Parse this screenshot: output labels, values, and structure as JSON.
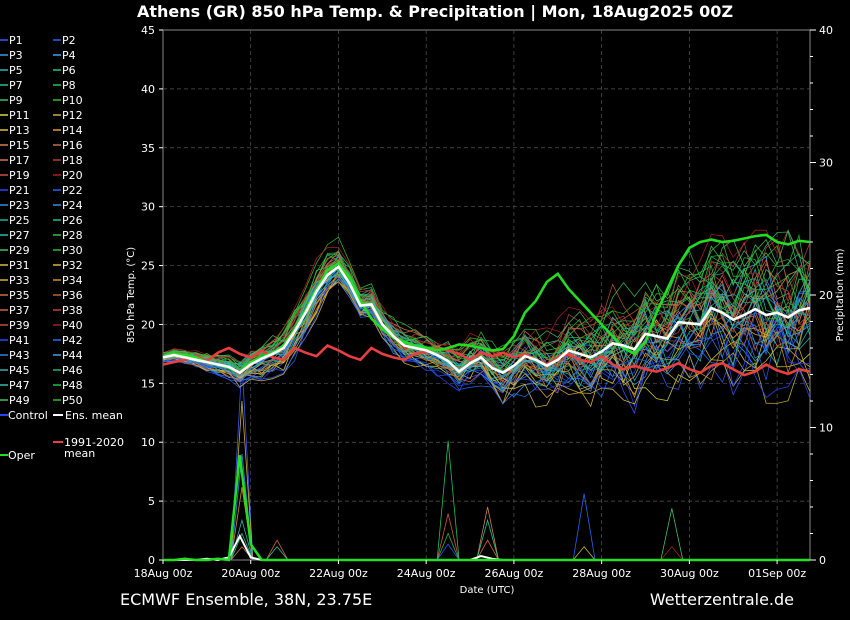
{
  "header": {
    "title": "Athens  (GR)  850 hPa Temp. & Precipitation | Mon, 18Aug2025 00Z"
  },
  "footer": {
    "left": "ECMWF Ensemble, 38N, 23.75E",
    "right": "Wetterzentrale.de"
  },
  "colors": {
    "background": "#000000",
    "text": "#ffffff",
    "grid": "#555555",
    "oper": "#22dd22",
    "climate": "#e84040",
    "mean": "#ffffff",
    "control": "#2244ff"
  },
  "legend": {
    "members": [
      "P1",
      "P2",
      "P3",
      "P4",
      "P5",
      "P6",
      "P7",
      "P8",
      "P9",
      "P10",
      "P11",
      "P12",
      "P13",
      "P14",
      "P15",
      "P16",
      "P17",
      "P18",
      "P19",
      "P20",
      "P21",
      "P22",
      "P23",
      "P24",
      "P25",
      "P26",
      "P27",
      "P28",
      "P29",
      "P30",
      "P31",
      "P32",
      "P33",
      "P34",
      "P35",
      "P36",
      "P37",
      "P38",
      "P39",
      "P40",
      "P41",
      "P42",
      "P43",
      "P44",
      "P45",
      "P46",
      "P47",
      "P48",
      "P49",
      "P50"
    ],
    "member_colors": [
      "#3b57ff",
      "#2b5cf0",
      "#2a9df0",
      "#3aa0ff",
      "#28b4b4",
      "#22c488",
      "#20c0a0",
      "#22c050",
      "#30c060",
      "#30c030",
      "#d8d840",
      "#c8b040",
      "#e0c030",
      "#d8a030",
      "#d08050",
      "#c07040",
      "#d07050",
      "#b04040",
      "#d05040",
      "#b02020",
      "#2844ff",
      "#2860f0",
      "#2890e0",
      "#3090e0",
      "#20b0a0",
      "#20c090",
      "#20c0b0",
      "#30c040",
      "#40c060",
      "#30b830",
      "#d8c040",
      "#e0b040",
      "#d0b030",
      "#d09020",
      "#c87040",
      "#c06030",
      "#d06040",
      "#c04040",
      "#c05030",
      "#a02020",
      "#2848ff",
      "#2070f0",
      "#3080e0",
      "#40a0e0",
      "#30b0b0",
      "#20b080",
      "#30c0a0",
      "#20c040",
      "#40c050",
      "#30c030"
    ],
    "control_label": "Control",
    "mean_label": "Ens. mean",
    "climate_label_line1": "1991-2020",
    "climate_label_line2": "mean",
    "oper_label": "Oper"
  },
  "chart_data": {
    "type": "line",
    "y_left_label": "850 hPa Temp. (°C)",
    "y_right_label": "Precipitation (mm)",
    "x_label": "Date (UTC)",
    "x_ticks": [
      "18Aug 00z",
      "20Aug 00z",
      "22Aug 00z",
      "24Aug 00z",
      "26Aug 00z",
      "28Aug 00z",
      "30Aug 00z",
      "01Sep 00z"
    ],
    "y_left_ticks": [
      0,
      5,
      10,
      15,
      20,
      25,
      30,
      35,
      40,
      45
    ],
    "y_right_ticks": [
      0,
      10,
      20,
      30,
      40
    ],
    "xlim_days": [
      0,
      14.75
    ],
    "ylim_left": [
      0,
      45
    ],
    "ylim_right": [
      0,
      40
    ],
    "grid": true,
    "oper_temp": [
      17.2,
      17.5,
      17.4,
      17.2,
      16.8,
      16.6,
      16.3,
      15.9,
      16.8,
      17.2,
      17.6,
      18.2,
      19.6,
      21.2,
      23.0,
      24.6,
      25.2,
      24.0,
      22.0,
      20.5,
      19.6,
      18.9,
      18.5,
      18.2,
      18.0,
      17.8,
      18.0,
      18.3,
      18.2,
      18.0,
      17.8,
      17.9,
      19.0,
      21.0,
      22.0,
      23.6,
      24.3,
      23.0,
      22.0,
      21.0,
      20.0,
      19.0,
      18.0,
      17.5,
      18.5,
      21.0,
      23.0,
      25.0,
      26.5,
      27.0,
      27.2,
      27.0,
      27.1,
      27.3,
      27.5,
      27.6,
      27.0,
      26.8,
      27.1,
      27.0
    ],
    "mean_temp": [
      17.2,
      17.4,
      17.2,
      17.0,
      16.8,
      16.6,
      16.4,
      15.9,
      16.6,
      17.1,
      17.5,
      18.0,
      19.4,
      21.0,
      22.8,
      24.2,
      24.9,
      23.5,
      21.6,
      21.7,
      20.0,
      19.0,
      18.2,
      18.0,
      17.8,
      17.4,
      16.9,
      16.0,
      16.7,
      17.2,
      16.3,
      15.9,
      16.5,
      17.3,
      17.0,
      16.5,
      17.0,
      17.8,
      17.5,
      17.2,
      17.7,
      18.4,
      18.2,
      17.9,
      19.2,
      19.0,
      18.8,
      20.2,
      20.1,
      20.0,
      21.4,
      21.0,
      20.4,
      20.8,
      21.3,
      20.8,
      21.0,
      20.6,
      21.2,
      21.4
    ],
    "climate_temp": [
      16.6,
      16.8,
      17.0,
      17.3,
      16.9,
      17.6,
      18.0,
      17.5,
      17.2,
      17.8,
      17.2,
      17.0,
      18.0,
      17.6,
      17.3,
      18.2,
      17.8,
      17.3,
      17.0,
      18.0,
      17.5,
      17.2,
      17.0,
      17.5,
      17.7,
      18.0,
      17.8,
      17.5,
      17.0,
      17.6,
      17.3,
      17.6,
      17.2,
      17.5,
      17.0,
      16.6,
      17.2,
      17.5,
      17.0,
      16.8,
      17.3,
      16.6,
      16.2,
      16.5,
      16.2,
      16.0,
      16.3,
      16.7,
      16.2,
      15.9,
      16.5,
      16.7,
      16.2,
      15.7,
      16.0,
      16.6,
      16.1,
      15.8,
      16.2,
      16.0
    ],
    "oper_precip": [
      0,
      0,
      0.1,
      0,
      0,
      0.1,
      0,
      7.9,
      1.2,
      0,
      0,
      0,
      0,
      0,
      0,
      0,
      0,
      0,
      0,
      0,
      0,
      0,
      0,
      0,
      0,
      0,
      0,
      0,
      0,
      0,
      0,
      0,
      0,
      0,
      0,
      0,
      0,
      0,
      0,
      0,
      0,
      0,
      0,
      0,
      0,
      0,
      0,
      0,
      0,
      0,
      0,
      0,
      0,
      0,
      0,
      0,
      0,
      0,
      0,
      0
    ],
    "mean_precip": [
      0,
      0,
      0,
      0,
      0.1,
      0,
      0.2,
      1.8,
      0.2,
      0,
      0,
      0,
      0,
      0,
      0,
      0,
      0,
      0,
      0,
      0,
      0,
      0,
      0,
      0,
      0,
      0,
      0,
      0,
      0,
      0.3,
      0.1,
      0,
      0,
      0,
      0,
      0,
      0,
      0,
      0,
      0,
      0,
      0,
      0,
      0,
      0,
      0,
      0,
      0,
      0,
      0,
      0,
      0,
      0,
      0,
      0,
      0,
      0,
      0,
      0,
      0
    ],
    "member_precip_spikes": [
      {
        "day": 1.8,
        "values": [
          14.9,
          12.0,
          8.0,
          5.5,
          3.0,
          2.0,
          1.0
        ]
      },
      {
        "day": 6.5,
        "values": [
          9.0,
          3.5,
          2.0,
          1.2
        ]
      },
      {
        "day": 7.4,
        "values": [
          4.0,
          3.0,
          1.5
        ]
      },
      {
        "day": 9.6,
        "values": [
          5.0,
          1.0
        ]
      },
      {
        "day": 11.6,
        "values": [
          3.9,
          1.0
        ]
      },
      {
        "day": 2.6,
        "values": [
          1.5,
          1.0
        ]
      }
    ]
  }
}
